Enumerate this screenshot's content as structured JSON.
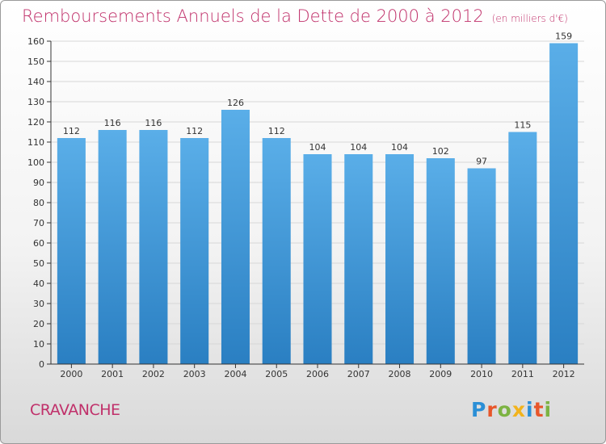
{
  "page": {
    "title": "Remboursements Annuels de la Dette de 2000 à 2012",
    "subtitle": "(en milliers d'€)",
    "town": "CRAVANCHE",
    "logo_text": "Proxiti"
  },
  "colors": {
    "title": "#c0306a",
    "bar_top": "#5aaee8",
    "bar_bottom": "#2a7fc2",
    "grid": "#d7d7d7",
    "axis": "#333333"
  },
  "chart_data": {
    "type": "bar",
    "title": "Remboursements Annuels de la Dette de 2000 à 2012",
    "subtitle": "(en milliers d'€)",
    "categories": [
      "2000",
      "2001",
      "2002",
      "2003",
      "2004",
      "2005",
      "2006",
      "2007",
      "2008",
      "2009",
      "2010",
      "2011",
      "2012"
    ],
    "values": [
      112,
      116,
      116,
      112,
      126,
      112,
      104,
      104,
      104,
      102,
      97,
      115,
      159
    ],
    "ylim": [
      0,
      160
    ],
    "yticks": [
      0,
      10,
      20,
      30,
      40,
      50,
      60,
      70,
      80,
      90,
      100,
      110,
      120,
      130,
      140,
      150,
      160
    ],
    "grid": true,
    "data_labels": true
  }
}
